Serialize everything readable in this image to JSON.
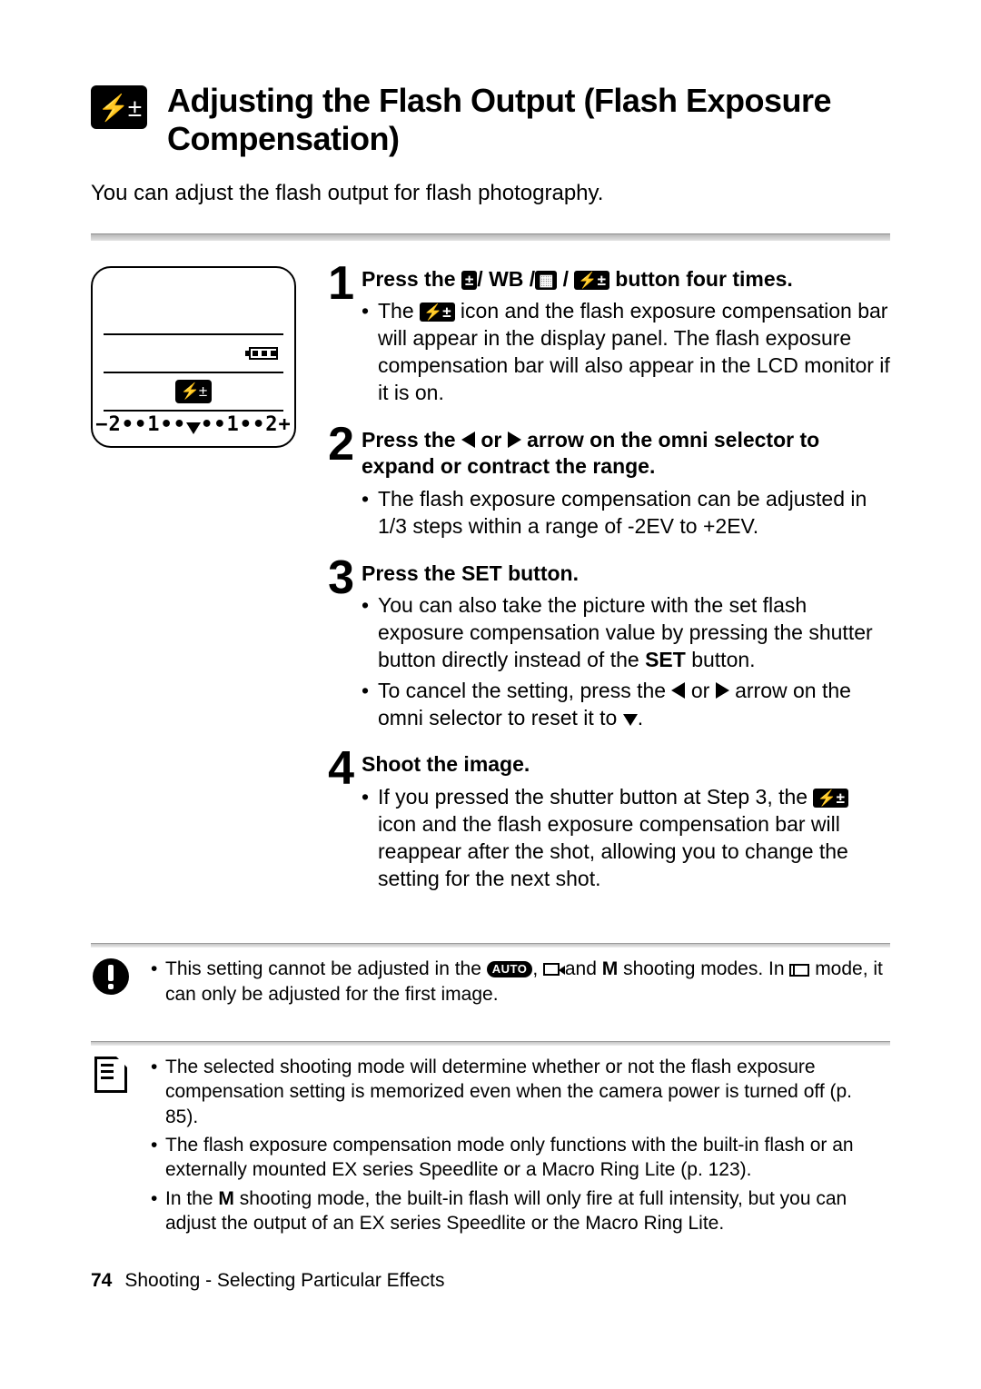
{
  "title": "Adjusting the Flash Output (Flash Exposure Compensation)",
  "intro": "You can adjust the flash output for flash photography.",
  "lcd": {
    "scale_left_sign": "−",
    "scale_right_sign": "+",
    "scale_text_left": "2••1••",
    "scale_text_right": "••1••2"
  },
  "steps": [
    {
      "num": "1",
      "head_pre": "Press the ",
      "head_mid": "/ WB /",
      "head_post": " button four times.",
      "bullets_a": "The ",
      "bullets_b": " icon and the flash exposure compensation bar will appear in the display panel. The flash exposure compensation bar will also appear in the LCD monitor if it is on."
    },
    {
      "num": "2",
      "head_pre": "Press the ",
      "head_mid": " or ",
      "head_post": " arrow on the omni selector to expand or contract the range.",
      "bullet": "The flash exposure compensation can be adjusted in 1/3 steps within a range of -2EV to +2EV."
    },
    {
      "num": "3",
      "head_pre": "Press the ",
      "head_set": "SET",
      "head_post": " button.",
      "b1_a": "You can also take the picture with the set flash exposure compensation value by pressing the shutter button directly instead of the ",
      "b1_set": "SET",
      "b1_b": " button.",
      "b2_a": "To cancel the setting, press the ",
      "b2_mid": " or ",
      "b2_b": " arrow on the omni selector to reset it to ",
      "b2_end": "."
    },
    {
      "num": "4",
      "head": "Shoot the image.",
      "b_a": "If you pressed the shutter button at Step 3, the ",
      "b_b": " icon and the flash exposure compensation bar will reappear after the shot, allowing you to change the setting for the next shot."
    }
  ],
  "note_warn_a": "This setting cannot be adjusted in the ",
  "note_warn_auto": "AUTO",
  "note_warn_b": ", ",
  "note_warn_c": " and ",
  "note_warn_m": "M",
  "note_warn_d": " shooting modes. In ",
  "note_warn_e": " mode, it can only be adjusted for the first image.",
  "note_info": [
    "The selected shooting mode will determine whether or not the flash exposure compensation setting is memorized even when the camera power is turned off (p. 85).",
    "The flash exposure compensation mode only functions with the built-in flash or an externally mounted EX series Speedlite or a Macro Ring Lite (p. 123)."
  ],
  "note_info3_a": "In the ",
  "note_info3_m": "M",
  "note_info3_b": " shooting mode, the built-in flash will only fire at full intensity, but you can adjust the output of an EX series Speedlite or the Macro Ring Lite.",
  "footer_page": "74",
  "footer_text": "Shooting - Selecting Particular Effects"
}
